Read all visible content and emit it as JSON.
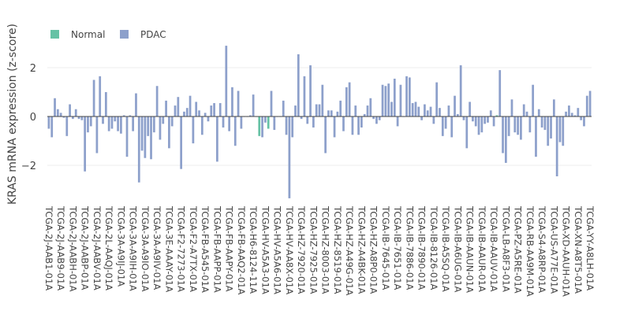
{
  "chart_data": {
    "type": "bar",
    "ylabel": "KRAS  mRNA expression (z-score)",
    "ylim": [
      -3.45,
      3.0
    ],
    "yticks": [
      -2,
      0,
      2
    ],
    "grid": true,
    "legend": {
      "placement": "top-left",
      "entries": [
        {
          "name": "Normal",
          "color": "#66c2a5"
        },
        {
          "name": "PDAC",
          "color": "#8da0cb"
        }
      ]
    },
    "tick_labels": [
      "TCGA-2J-AAB1-01A",
      "TCGA-2J-AAB9-01A",
      "TCGA-2J-AABH-01A",
      "TCGA-2J-AABP-01A",
      "TCGA-2J-AABV-01A",
      "TCGA-2L-AAQJ-01A",
      "TCGA-3A-A9IJ-01A",
      "TCGA-3A-A9IH-01A",
      "TCGA-3A-A9IO-01A",
      "TCGA-3A-A9IV-01A",
      "TCGA-3E-AAAY-01A",
      "TCGA-F2-7273-01A",
      "TCGA-F2-A7TX-01A",
      "TCGA-FB-A545-01A",
      "TCGA-FB-AAPP-01A",
      "TCGA-FB-AAPY-01A",
      "TCGA-FB-AAQ2-01A",
      "TCGA-H6-8124-11A",
      "TCGA-HV-A5A3-01A",
      "TCGA-HV-A5A6-01A",
      "TCGA-HV-AA8X-01A",
      "TCGA-HZ-7920-01A",
      "TCGA-HZ-7925-01A",
      "TCGA-HZ-8003-01A",
      "TCGA-HZ-8519-01A",
      "TCGA-HZ-A49G-01A",
      "TCGA-HZ-A4BK-01A",
      "TCGA-HZ-A8P0-01A",
      "TCGA-IB-7645-01A",
      "TCGA-IB-7651-01A",
      "TCGA-IB-7886-01A",
      "TCGA-IB-7890-01A",
      "TCGA-IB-8126-01A",
      "TCGA-IB-A5SQ-01A",
      "TCGA-IB-A6UG-01A",
      "TCGA-IB-AAUN-01A",
      "TCGA-IB-AAUR-01A",
      "TCGA-IB-AAUV-01A",
      "TCGA-LB-A8F3-01A",
      "TCGA-PZ-A5RE-01A",
      "TCGA-RB-AA9M-01A",
      "TCGA-S4-A8RP-01A",
      "TCGA-US-A77E-01A",
      "TCGA-XD-AAUH-01A",
      "TCGA-XN-A8T5-01A",
      "TCGA-YY-A8LH-01A"
    ],
    "samples_per_tick": 4,
    "values": [
      -0.5,
      -0.85,
      0.75,
      0.3,
      0.15,
      -0.05,
      -0.8,
      0.5,
      -0.1,
      0.3,
      -0.1,
      -0.15,
      -2.25,
      -0.65,
      -0.4,
      1.5,
      -1.5,
      1.65,
      -0.3,
      1.0,
      -0.6,
      -0.5,
      -0.2,
      -0.6,
      -0.7,
      0.05,
      -1.65,
      0.05,
      -0.6,
      0.95,
      -2.7,
      -1.4,
      -1.7,
      -0.8,
      -1.75,
      -0.65,
      1.25,
      -0.95,
      -0.3,
      0.65,
      -1.3,
      -0.4,
      0.45,
      0.8,
      -2.15,
      0.2,
      0.35,
      0.85,
      -1.1,
      0.6,
      0.25,
      -0.75,
      0.15,
      -0.2,
      0.45,
      0.55,
      -1.85,
      0.55,
      -0.45,
      2.9,
      -0.6,
      1.2,
      -1.2,
      1.05,
      -0.5,
      0.0,
      0.0,
      0.05,
      0.9,
      0.0,
      -0.25,
      -0.85,
      -0.25,
      0.05,
      1.05,
      -0.55,
      0.0,
      0.0,
      0.65,
      -0.75,
      -3.35,
      -0.85,
      0.45,
      2.55,
      -0.1,
      1.65,
      -0.3,
      2.1,
      -0.45,
      0.5,
      0.5,
      1.3,
      -1.5,
      0.25,
      0.25,
      -0.85,
      0.2,
      0.65,
      -0.6,
      1.2,
      1.4,
      -0.75,
      0.45,
      -0.75,
      -0.45,
      0.1,
      0.45,
      0.75,
      -0.1,
      -0.3,
      -0.15,
      1.3,
      1.25,
      1.35,
      0.6,
      1.55,
      -0.4,
      1.3,
      0.0,
      1.65,
      1.6,
      0.55,
      0.6,
      0.4,
      -0.15,
      0.5,
      0.25,
      0.4,
      -0.3,
      1.4,
      0.35,
      -0.8,
      -0.5,
      0.45,
      -0.85,
      0.85,
      0.1,
      2.1,
      -0.15,
      -1.3,
      0.6,
      -0.2,
      -0.4,
      -0.75,
      -0.65,
      -0.3,
      -0.25,
      0.25,
      -0.4,
      -0.6,
      1.9,
      -1.5,
      -1.9,
      -0.8,
      0.7,
      -0.65,
      -0.75,
      -0.95,
      0.5,
      0.2,
      -0.65,
      1.3,
      -1.65,
      0.3,
      -0.45,
      -0.55,
      -1.2,
      -0.9,
      0.7,
      -2.45,
      -1.05,
      -1.2,
      0.2,
      0.45,
      0.15,
      0.05,
      0.35,
      -0.15,
      -0.4,
      0.85,
      1.05
    ],
    "normal_indices": [
      70,
      73,
      149,
      185
    ],
    "normal_values": [
      -0.8,
      -0.5,
      0.05,
      -0.35
    ]
  }
}
